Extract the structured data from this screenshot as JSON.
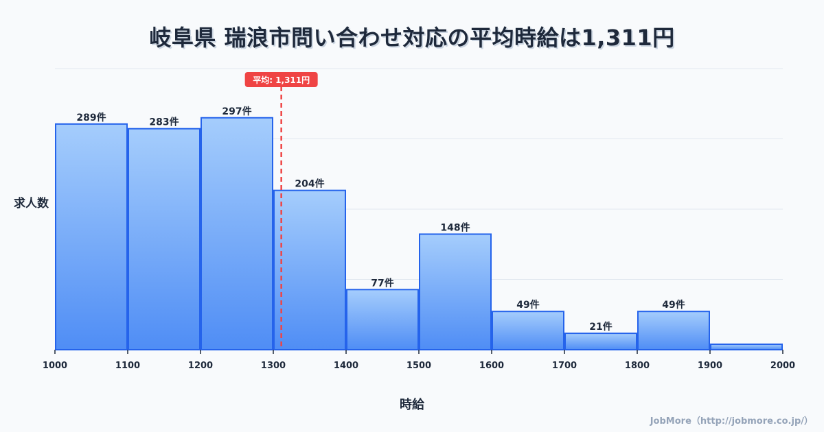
{
  "chart_data": {
    "type": "bar",
    "title": "岐阜県 瑞浪市問い合わせ対応の平均時給は1,311円",
    "xlabel": "時給",
    "ylabel": "求人数",
    "bins": [
      {
        "start": 1000,
        "end": 1100,
        "count": 289,
        "label": "289件"
      },
      {
        "start": 1100,
        "end": 1200,
        "count": 283,
        "label": "283件"
      },
      {
        "start": 1200,
        "end": 1300,
        "count": 297,
        "label": "297件"
      },
      {
        "start": 1300,
        "end": 1400,
        "count": 204,
        "label": "204件"
      },
      {
        "start": 1400,
        "end": 1500,
        "count": 77,
        "label": "77件"
      },
      {
        "start": 1500,
        "end": 1600,
        "count": 148,
        "label": "148件"
      },
      {
        "start": 1600,
        "end": 1700,
        "count": 49,
        "label": "49件"
      },
      {
        "start": 1700,
        "end": 1800,
        "count": 21,
        "label": "21件"
      },
      {
        "start": 1800,
        "end": 1900,
        "count": 49,
        "label": "49件"
      },
      {
        "start": 1900,
        "end": 2000,
        "count": 7,
        "label": ""
      }
    ],
    "x_ticks": [
      "1000",
      "1100",
      "1200",
      "1300",
      "1400",
      "1500",
      "1600",
      "1700",
      "1800",
      "1900",
      "2000"
    ],
    "xlim": [
      1000,
      2000
    ],
    "ylim": [
      0,
      360
    ],
    "grid": true,
    "average": {
      "value": 1311,
      "label": "平均: 1,311円",
      "color": "#ef4444"
    },
    "bar_color_top": "#a5cdfc",
    "bar_color_bottom": "#4f8df5",
    "bar_stroke": "#2563eb"
  },
  "credit": "JobMore（http://jobmore.co.jp/）"
}
